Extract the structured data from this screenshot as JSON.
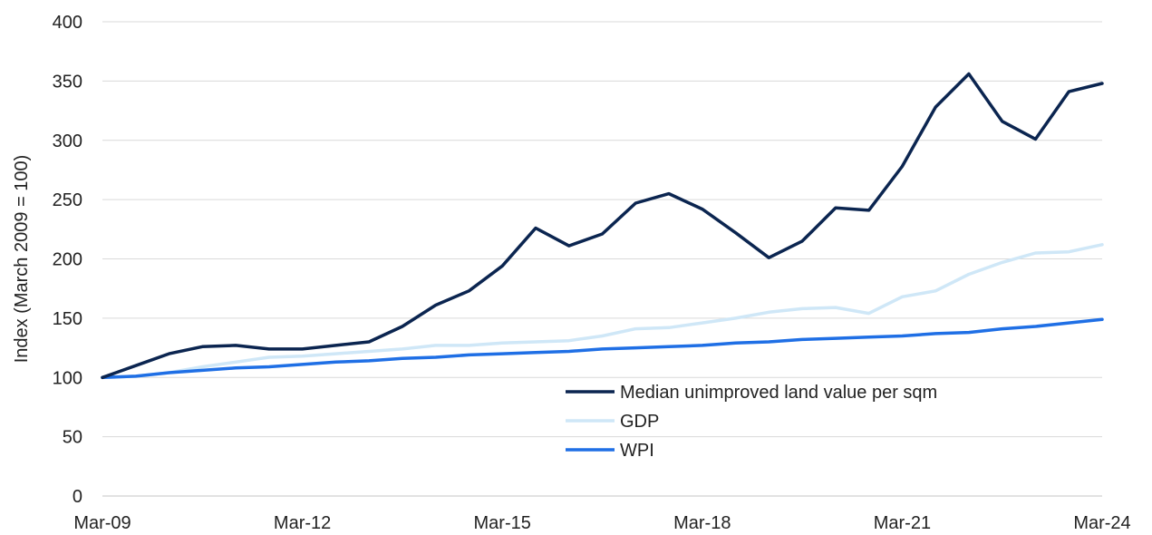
{
  "chart_data": {
    "type": "line",
    "ylabel": "Index (March  2009 = 100)",
    "ylim": [
      0,
      400
    ],
    "y_ticks": [
      "0",
      "50",
      "100",
      "150",
      "200",
      "250",
      "300",
      "350",
      "400"
    ],
    "x_tick_labels": [
      "Mar-09",
      "Mar-12",
      "Mar-15",
      "Mar-18",
      "Mar-21",
      "Mar-24"
    ],
    "x": [
      "Mar-09",
      "Sep-09",
      "Mar-10",
      "Sep-10",
      "Mar-11",
      "Sep-11",
      "Mar-12",
      "Sep-12",
      "Mar-13",
      "Sep-13",
      "Mar-14",
      "Sep-14",
      "Mar-15",
      "Sep-15",
      "Mar-16",
      "Sep-16",
      "Mar-17",
      "Sep-17",
      "Mar-18",
      "Sep-18",
      "Mar-19",
      "Sep-19",
      "Mar-20",
      "Sep-20",
      "Mar-21",
      "Sep-21",
      "Mar-22",
      "Sep-22",
      "Mar-23",
      "Sep-23",
      "Mar-24"
    ],
    "grid": true,
    "legend_position": "bottom-right",
    "series": [
      {
        "name": "Median unimproved land value per sqm",
        "color": "#0b2550",
        "values": [
          100,
          110,
          120,
          126,
          127,
          124,
          124,
          127,
          130,
          143,
          161,
          173,
          194,
          226,
          211,
          221,
          247,
          255,
          242,
          222,
          201,
          215,
          243,
          241,
          278,
          328,
          356,
          316,
          301,
          341,
          348
        ]
      },
      {
        "name": "GDP",
        "color": "#cfe7f7",
        "values": [
          100,
          101,
          104,
          109,
          113,
          117,
          118,
          120,
          122,
          124,
          127,
          127,
          129,
          130,
          131,
          135,
          141,
          142,
          146,
          150,
          155,
          158,
          159,
          154,
          168,
          173,
          187,
          197,
          205,
          206,
          212
        ]
      },
      {
        "name": "WPI",
        "color": "#1f6fe5",
        "values": [
          100,
          101,
          104,
          106,
          108,
          109,
          111,
          113,
          114,
          116,
          117,
          119,
          120,
          121,
          122,
          124,
          125,
          126,
          127,
          129,
          130,
          132,
          133,
          134,
          135,
          137,
          138,
          141,
          143,
          146,
          149
        ]
      }
    ]
  }
}
